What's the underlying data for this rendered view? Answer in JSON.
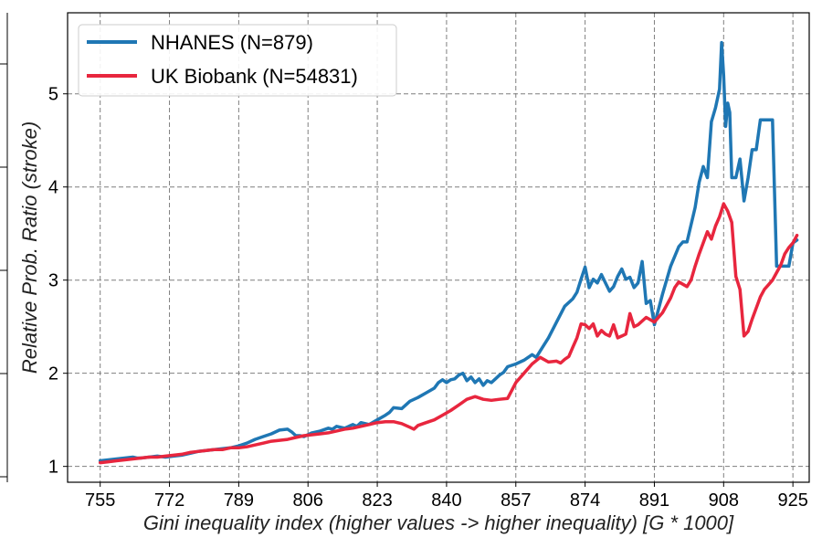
{
  "chart_data": {
    "type": "line",
    "title": "",
    "xlabel": "Gini inequality index (higher values -> higher inequality) [G * 1000]",
    "ylabel": "Relative Prob. Ratio (stroke)",
    "xlim": [
      747,
      929
    ],
    "ylim": [
      0.83,
      5.87
    ],
    "xticks": [
      755,
      772,
      789,
      806,
      823,
      840,
      857,
      874,
      891,
      908,
      925
    ],
    "yticks": [
      1,
      2,
      3,
      4,
      5
    ],
    "grid": true,
    "legend_position": "top-left",
    "series": [
      {
        "name": "NHANES (N=879)",
        "color": "#1f77b4",
        "x": [
          755,
          757,
          759,
          761,
          763,
          764,
          765,
          767,
          769,
          771,
          773,
          775,
          777,
          779,
          781,
          783,
          785,
          787,
          789,
          791,
          793,
          795,
          797,
          799,
          801,
          802,
          803,
          804,
          805,
          807,
          809,
          811,
          812,
          813,
          815,
          817,
          818,
          819,
          821,
          823,
          825,
          826,
          827,
          829,
          831,
          833,
          835,
          837,
          838,
          839,
          840,
          841,
          842,
          843,
          844,
          845,
          846,
          847,
          848,
          849,
          850,
          851,
          852,
          853,
          854,
          855,
          857,
          859,
          861,
          862,
          863,
          865,
          867,
          869,
          871,
          872,
          873,
          874,
          875,
          876,
          877,
          878,
          879,
          880,
          881,
          882,
          883,
          884,
          885,
          886,
          887,
          888,
          889,
          890,
          891,
          893,
          895,
          897,
          898,
          899,
          901,
          902,
          903,
          904,
          905,
          906,
          907,
          907.5,
          908,
          908.5,
          909,
          909.5,
          910,
          911,
          912,
          913,
          914,
          915,
          916,
          917,
          918,
          919,
          920,
          921,
          922,
          923,
          924,
          925,
          926
        ],
        "y": [
          1.06,
          1.07,
          1.08,
          1.09,
          1.1,
          1.09,
          1.09,
          1.1,
          1.11,
          1.1,
          1.11,
          1.12,
          1.14,
          1.16,
          1.17,
          1.18,
          1.19,
          1.2,
          1.22,
          1.25,
          1.29,
          1.32,
          1.35,
          1.39,
          1.4,
          1.37,
          1.33,
          1.33,
          1.32,
          1.36,
          1.38,
          1.41,
          1.4,
          1.43,
          1.41,
          1.45,
          1.43,
          1.47,
          1.45,
          1.5,
          1.55,
          1.58,
          1.63,
          1.62,
          1.7,
          1.74,
          1.79,
          1.84,
          1.9,
          1.93,
          1.9,
          1.93,
          1.94,
          1.98,
          2.0,
          1.92,
          1.96,
          1.9,
          1.94,
          1.87,
          1.92,
          1.9,
          1.94,
          1.98,
          2.01,
          2.07,
          2.1,
          2.14,
          2.2,
          2.17,
          2.24,
          2.38,
          2.55,
          2.72,
          2.8,
          2.87,
          3.01,
          3.14,
          2.92,
          3.01,
          2.97,
          3.06,
          2.97,
          2.88,
          2.93,
          3.04,
          3.12,
          3.01,
          3.03,
          2.92,
          2.97,
          3.2,
          2.75,
          2.78,
          2.52,
          2.85,
          3.15,
          3.36,
          3.41,
          3.41,
          3.78,
          4.05,
          4.22,
          4.1,
          4.7,
          4.85,
          5.05,
          5.55,
          5.2,
          4.65,
          4.9,
          4.8,
          4.1,
          4.1,
          4.3,
          3.85,
          4.1,
          4.4,
          4.4,
          4.72,
          4.72,
          4.72,
          4.72,
          3.15,
          3.15,
          3.15,
          3.15,
          3.4,
          3.43
        ]
      },
      {
        "name": "UK Biobank (N=54831)",
        "color": "#e8263e",
        "x": [
          755,
          757,
          759,
          761,
          763,
          765,
          767,
          769,
          771,
          773,
          775,
          777,
          779,
          781,
          783,
          785,
          787,
          789,
          791,
          793,
          795,
          797,
          799,
          801,
          803,
          805,
          807,
          809,
          811,
          813,
          815,
          817,
          819,
          821,
          823,
          825,
          827,
          829,
          831,
          832,
          833,
          835,
          837,
          839,
          841,
          843,
          845,
          847,
          849,
          851,
          853,
          855,
          857,
          859,
          861,
          863,
          865,
          867,
          868,
          869,
          870,
          871,
          872,
          873,
          874,
          875,
          876,
          877,
          878,
          879,
          880,
          881,
          882,
          883,
          884,
          885,
          886,
          887,
          889,
          891,
          893,
          895,
          896,
          897,
          899,
          900,
          901,
          902,
          903,
          904,
          905,
          906,
          907,
          908,
          909,
          910,
          911,
          912,
          913,
          914,
          915,
          916,
          917,
          918,
          919,
          920,
          921,
          922,
          923,
          924,
          925,
          926
        ],
        "y": [
          1.04,
          1.05,
          1.06,
          1.07,
          1.08,
          1.09,
          1.1,
          1.1,
          1.11,
          1.12,
          1.13,
          1.15,
          1.16,
          1.17,
          1.18,
          1.18,
          1.2,
          1.2,
          1.21,
          1.23,
          1.25,
          1.27,
          1.28,
          1.29,
          1.31,
          1.33,
          1.34,
          1.35,
          1.36,
          1.38,
          1.4,
          1.41,
          1.43,
          1.45,
          1.47,
          1.48,
          1.48,
          1.46,
          1.42,
          1.4,
          1.44,
          1.47,
          1.5,
          1.55,
          1.6,
          1.66,
          1.72,
          1.75,
          1.72,
          1.71,
          1.72,
          1.73,
          1.9,
          2.0,
          2.1,
          2.17,
          2.12,
          2.13,
          2.11,
          2.15,
          2.18,
          2.28,
          2.38,
          2.53,
          2.52,
          2.48,
          2.53,
          2.4,
          2.46,
          2.42,
          2.4,
          2.52,
          2.38,
          2.4,
          2.42,
          2.64,
          2.5,
          2.52,
          2.6,
          2.55,
          2.65,
          2.81,
          2.92,
          2.98,
          2.93,
          3.0,
          3.15,
          3.28,
          3.4,
          3.52,
          3.44,
          3.58,
          3.68,
          3.82,
          3.74,
          3.62,
          3.04,
          2.9,
          2.4,
          2.45,
          2.58,
          2.7,
          2.82,
          2.9,
          2.95,
          3.0,
          3.08,
          3.16,
          3.28,
          3.35,
          3.4,
          3.48
        ]
      }
    ]
  }
}
